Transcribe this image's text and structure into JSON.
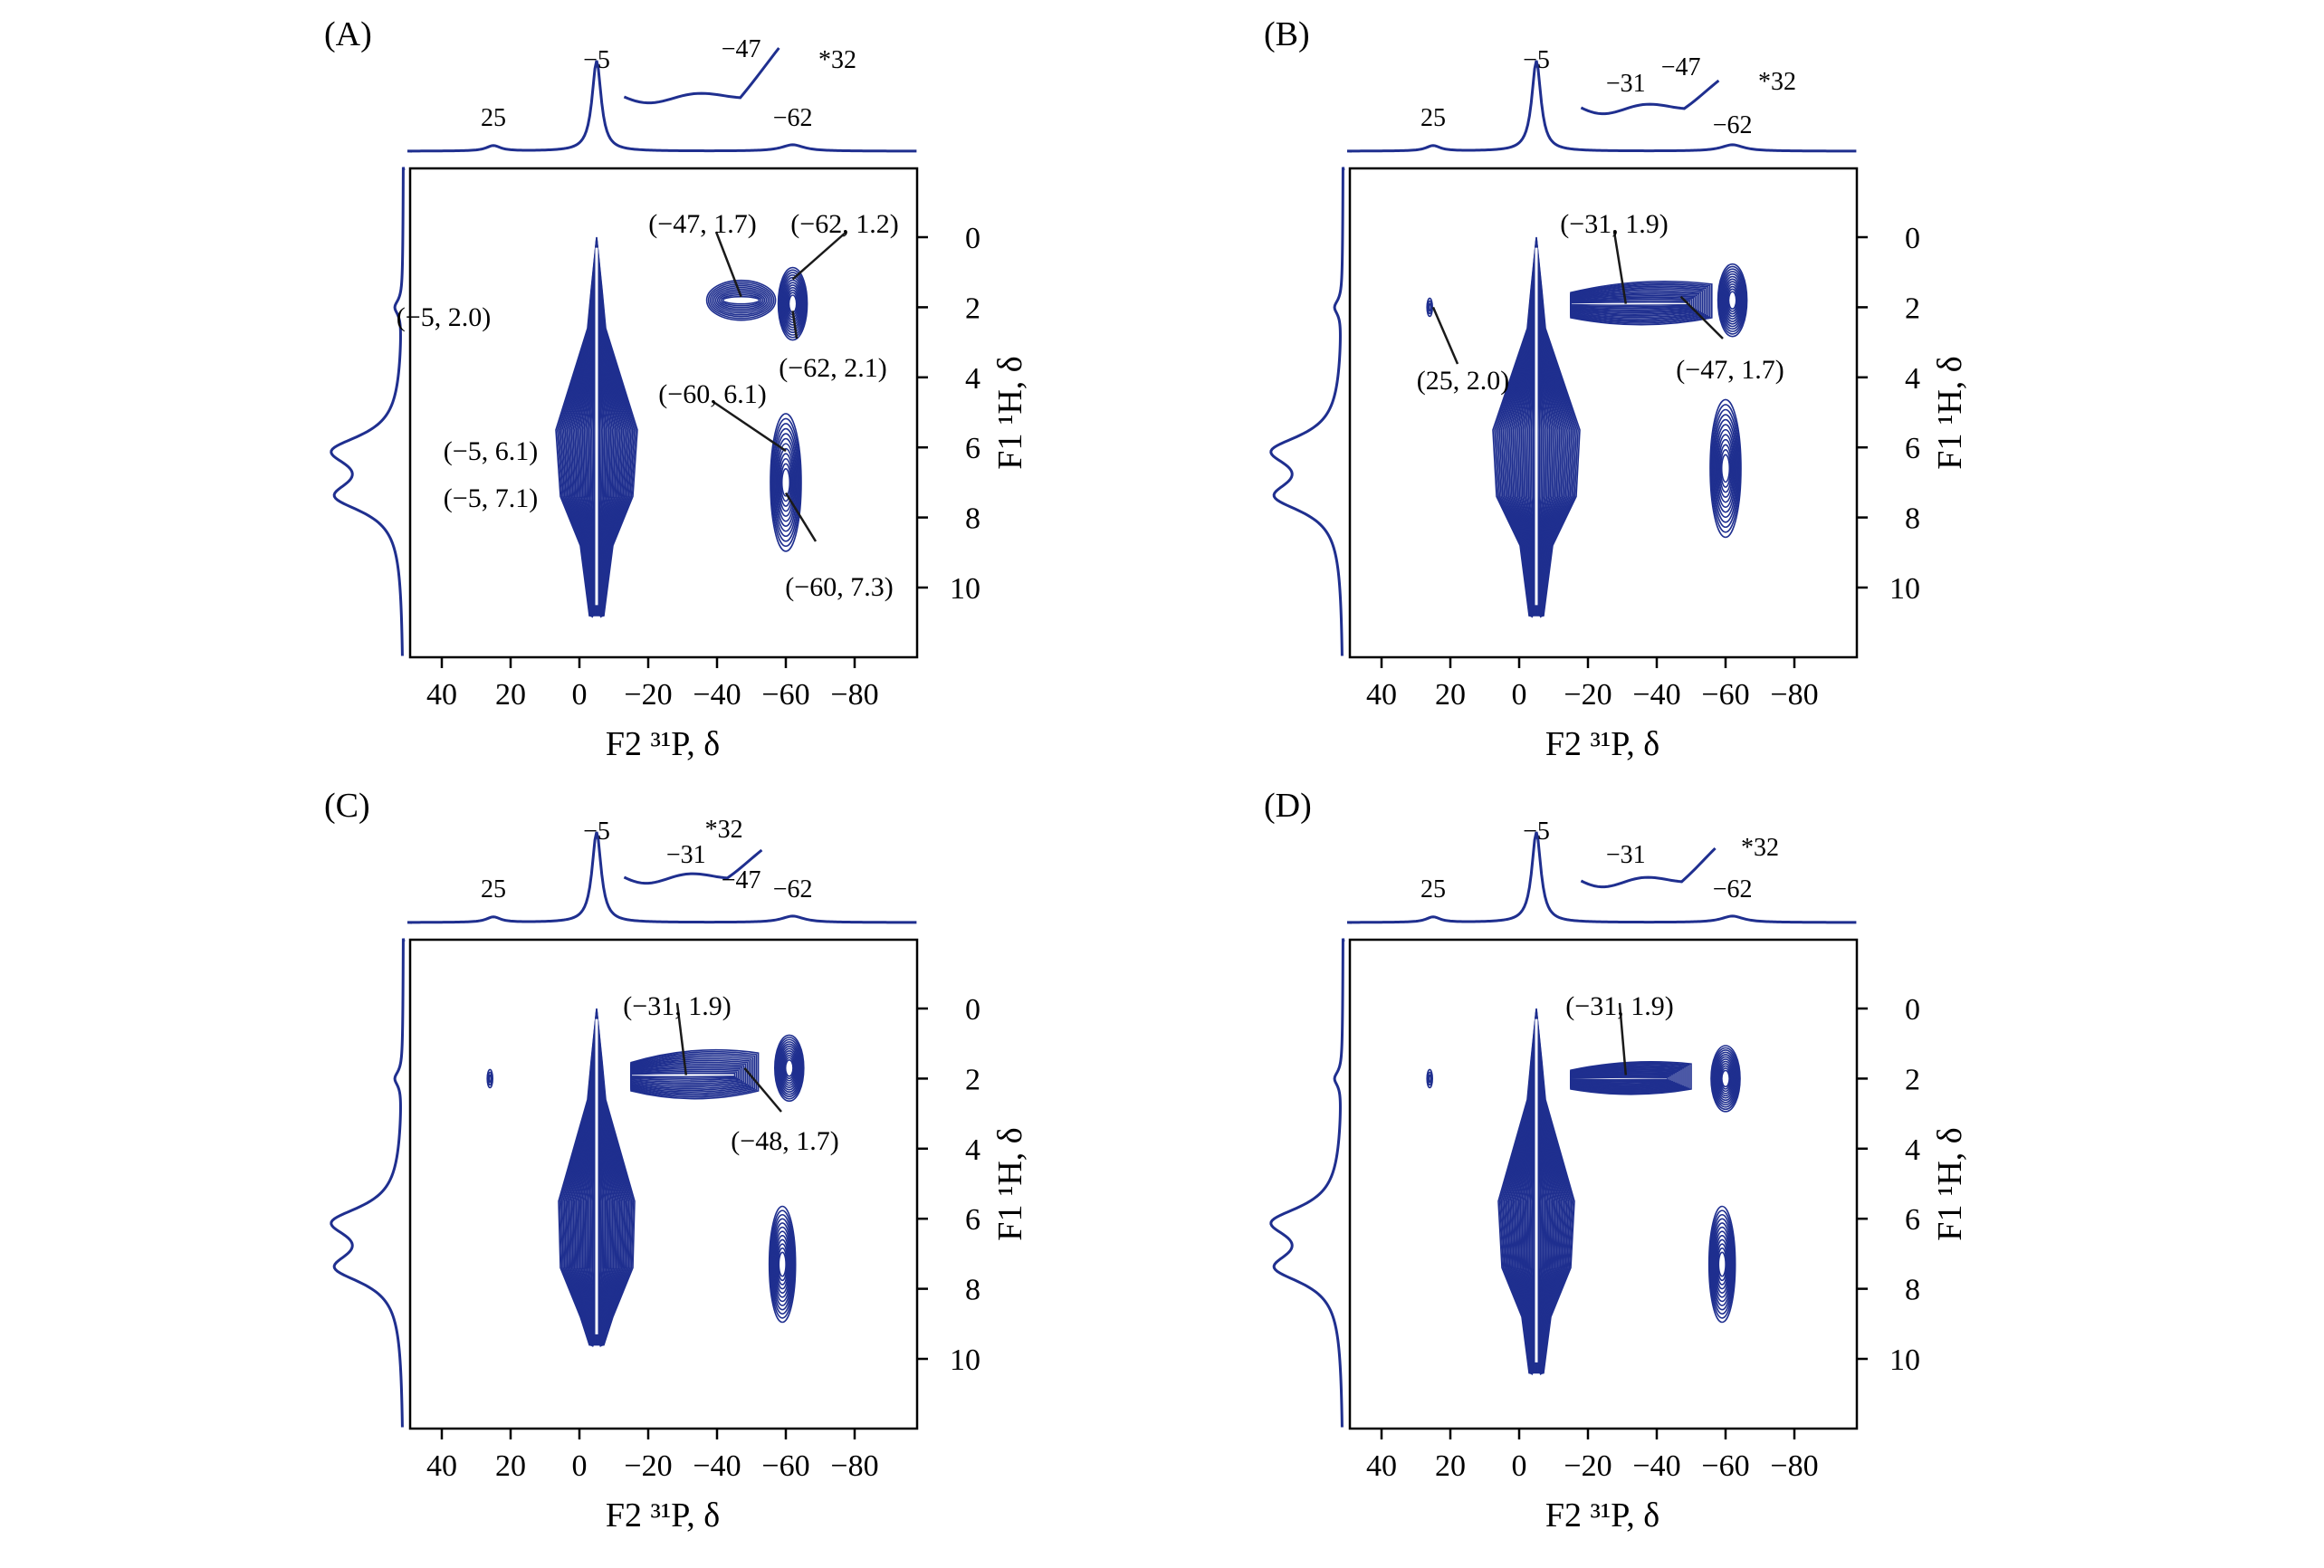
{
  "chart_data": [
    {
      "type": "contour",
      "panel_label": "(A)",
      "xlabel": "F2 ³¹P, δ",
      "ylabel": "F1 ¹H, δ",
      "x_ticks": [
        "40",
        "20",
        "0",
        "−20",
        "−40",
        "−60",
        "−80"
      ],
      "y_ticks": [
        "0",
        "2",
        "4",
        "6",
        "8",
        "10"
      ],
      "xlim": [
        50,
        -98
      ],
      "ylim": [
        -2,
        12
      ],
      "cross_peaks": [
        {
          "x": -5,
          "y": 2.0,
          "label": "(−5, 2.0)"
        },
        {
          "x": -5,
          "y": 6.1,
          "label": "(−5, 6.1)"
        },
        {
          "x": -5,
          "y": 7.1,
          "label": "(−5, 7.1)"
        },
        {
          "x": -47,
          "y": 1.7,
          "label": "(−47, 1.7)"
        },
        {
          "x": -62,
          "y": 1.2,
          "label": "(−62, 1.2)"
        },
        {
          "x": -62,
          "y": 2.1,
          "label": "(−62, 2.1)"
        },
        {
          "x": -60,
          "y": 6.1,
          "label": "(−60, 6.1)"
        },
        {
          "x": -60,
          "y": 7.3,
          "label": "(−60, 7.3)"
        }
      ],
      "projection_peaks": [
        "−5",
        "25",
        "−47",
        "−62",
        "*32"
      ]
    },
    {
      "type": "contour",
      "panel_label": "(B)",
      "xlabel": "F2 ³¹P, δ",
      "ylabel": "F1 ¹H, δ",
      "x_ticks": [
        "40",
        "20",
        "0",
        "−20",
        "−40",
        "−60",
        "−80"
      ],
      "y_ticks": [
        "0",
        "2",
        "4",
        "6",
        "8",
        "10"
      ],
      "xlim": [
        50,
        -98
      ],
      "ylim": [
        -2,
        12
      ],
      "cross_peaks": [
        {
          "x": -31,
          "y": 1.9,
          "label": "(−31, 1.9)"
        },
        {
          "x": -47,
          "y": 1.7,
          "label": "(−47, 1.7)"
        },
        {
          "x": 25,
          "y": 2.0,
          "label": "(25, 2.0)"
        }
      ],
      "projection_peaks": [
        "−5",
        "25",
        "−31",
        "−47",
        "−62",
        "*32"
      ]
    },
    {
      "type": "contour",
      "panel_label": "(C)",
      "xlabel": "F2 ³¹P, δ",
      "ylabel": "F1 ¹H, δ",
      "x_ticks": [
        "40",
        "20",
        "0",
        "−20",
        "−40",
        "−60",
        "−80"
      ],
      "y_ticks": [
        "0",
        "2",
        "4",
        "6",
        "8",
        "10"
      ],
      "xlim": [
        50,
        -98
      ],
      "ylim": [
        -2,
        12
      ],
      "cross_peaks": [
        {
          "x": -31,
          "y": 1.9,
          "label": "(−31, 1.9)"
        },
        {
          "x": -48,
          "y": 1.7,
          "label": "(−48, 1.7)"
        }
      ],
      "projection_peaks": [
        "−5",
        "25",
        "−31",
        "−47",
        "−62",
        "*32"
      ]
    },
    {
      "type": "contour",
      "panel_label": "(D)",
      "xlabel": "F2 ³¹P, δ",
      "ylabel": "F1 ¹H, δ",
      "x_ticks": [
        "40",
        "20",
        "0",
        "−20",
        "−40",
        "−60",
        "−80"
      ],
      "y_ticks": [
        "0",
        "2",
        "4",
        "6",
        "8",
        "10"
      ],
      "xlim": [
        50,
        -98
      ],
      "ylim": [
        -2,
        12
      ],
      "cross_peaks": [
        {
          "x": -31,
          "y": 1.9,
          "label": "(−31, 1.9)"
        }
      ],
      "projection_peaks": [
        "−5",
        "25",
        "−31",
        "−62",
        "*32"
      ]
    }
  ],
  "colors": {
    "contour": "#1f2f8f",
    "axis": "#000000"
  }
}
